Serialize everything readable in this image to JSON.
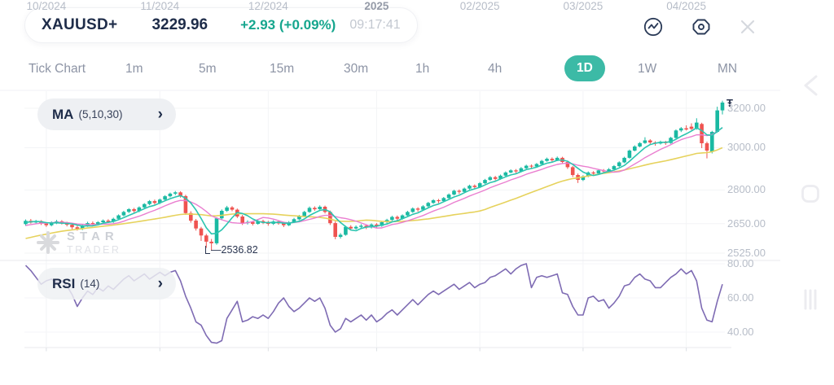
{
  "header": {
    "symbol": "XAUUSD+",
    "price": "3229.96",
    "change": "+2.93 (+0.09%)",
    "time": "09:17:41"
  },
  "toolbar": {
    "timeframes": [
      "Tick Chart",
      "1m",
      "5m",
      "15m",
      "30m",
      "1h",
      "4h",
      "1D",
      "1W",
      "MN"
    ],
    "active": "1D"
  },
  "indicators": {
    "ma_label": "MA",
    "ma_params": "(5,10,30)",
    "rsi_label": "RSI",
    "rsi_params": "(14)"
  },
  "watermark": {
    "line1": "STAR",
    "line2": "TRADER"
  },
  "colors": {
    "up": "#1ab9a2",
    "down": "#ef5350",
    "ma5": "#2cc5b0",
    "ma10": "#ea7fd0",
    "ma30": "#e6d25c",
    "rsi": "#7e6bb3",
    "accent": "#3cbaa6",
    "change": "#16a68e",
    "grid": "#f3f4f6",
    "separator": "#e8eaee"
  },
  "chart_data": {
    "type": "candlestick",
    "title": "XAUUSD+ 1D",
    "price_scale": "log",
    "grid": true,
    "low_marker": {
      "label": "—2536.82",
      "value": 2536.82,
      "candle_index": 36
    },
    "last_price": 3229.96,
    "x_ticks": [
      {
        "index": 4,
        "label": "10/2024"
      },
      {
        "index": 26,
        "label": "11/2024"
      },
      {
        "index": 47,
        "label": "12/2024"
      },
      {
        "index": 68,
        "label": "2025",
        "bold": true
      },
      {
        "index": 88,
        "label": "02/2025"
      },
      {
        "index": 108,
        "label": "03/2025"
      },
      {
        "index": 128,
        "label": "04/2025"
      }
    ],
    "price_ticks": [
      {
        "value": 3200,
        "label": "3200.00"
      },
      {
        "value": 3000,
        "label": "3000.00"
      },
      {
        "value": 2800,
        "label": "2800.00"
      },
      {
        "value": 2650,
        "label": "2650.00"
      },
      {
        "value": 2525,
        "label": "2525.00"
      }
    ],
    "rsi_ticks": [
      {
        "value": 80,
        "label": "80.00"
      },
      {
        "value": 60,
        "label": "60.00"
      },
      {
        "value": 40,
        "label": "40.00"
      }
    ],
    "ma_periods": [
      5,
      10,
      30
    ],
    "candles": [
      [
        2648,
        2668,
        2640,
        2662
      ],
      [
        2662,
        2670,
        2650,
        2655
      ],
      [
        2655,
        2666,
        2648,
        2661
      ],
      [
        2661,
        2665,
        2644,
        2650
      ],
      [
        2650,
        2656,
        2636,
        2643
      ],
      [
        2643,
        2660,
        2638,
        2654
      ],
      [
        2654,
        2666,
        2648,
        2660
      ],
      [
        2660,
        2665,
        2646,
        2652
      ],
      [
        2652,
        2658,
        2638,
        2645
      ],
      [
        2645,
        2650,
        2626,
        2634
      ],
      [
        2634,
        2642,
        2620,
        2627
      ],
      [
        2627,
        2646,
        2622,
        2641
      ],
      [
        2641,
        2658,
        2636,
        2652
      ],
      [
        2652,
        2659,
        2642,
        2648
      ],
      [
        2648,
        2661,
        2643,
        2656
      ],
      [
        2656,
        2668,
        2650,
        2663
      ],
      [
        2663,
        2669,
        2652,
        2658
      ],
      [
        2658,
        2676,
        2653,
        2671
      ],
      [
        2671,
        2690,
        2666,
        2686
      ],
      [
        2686,
        2706,
        2682,
        2701
      ],
      [
        2701,
        2718,
        2696,
        2713
      ],
      [
        2713,
        2719,
        2698,
        2705
      ],
      [
        2705,
        2726,
        2700,
        2721
      ],
      [
        2721,
        2740,
        2716,
        2736
      ],
      [
        2736,
        2754,
        2731,
        2749
      ],
      [
        2749,
        2756,
        2734,
        2741
      ],
      [
        2741,
        2761,
        2736,
        2756
      ],
      [
        2756,
        2776,
        2751,
        2771
      ],
      [
        2771,
        2788,
        2766,
        2783
      ],
      [
        2783,
        2795,
        2776,
        2789
      ],
      [
        2789,
        2794,
        2765,
        2772
      ],
      [
        2772,
        2778,
        2688,
        2696
      ],
      [
        2696,
        2704,
        2654,
        2663
      ],
      [
        2663,
        2670,
        2620,
        2629
      ],
      [
        2629,
        2636,
        2576,
        2599
      ],
      [
        2599,
        2606,
        2547,
        2573
      ],
      [
        2573,
        2584,
        2536.82,
        2566
      ],
      [
        2566,
        2678,
        2560,
        2673
      ],
      [
        2673,
        2712,
        2668,
        2706
      ],
      [
        2706,
        2728,
        2701,
        2721
      ],
      [
        2721,
        2727,
        2704,
        2711
      ],
      [
        2711,
        2716,
        2674,
        2681
      ],
      [
        2681,
        2688,
        2644,
        2652
      ],
      [
        2652,
        2664,
        2646,
        2657
      ],
      [
        2657,
        2662,
        2642,
        2649
      ],
      [
        2649,
        2668,
        2645,
        2661
      ],
      [
        2661,
        2667,
        2648,
        2656
      ],
      [
        2656,
        2662,
        2641,
        2649
      ],
      [
        2649,
        2665,
        2644,
        2659
      ],
      [
        2659,
        2664,
        2645,
        2651
      ],
      [
        2651,
        2658,
        2635,
        2643
      ],
      [
        2643,
        2661,
        2639,
        2656
      ],
      [
        2656,
        2675,
        2652,
        2669
      ],
      [
        2669,
        2688,
        2665,
        2682
      ],
      [
        2682,
        2706,
        2678,
        2701
      ],
      [
        2701,
        2725,
        2697,
        2719
      ],
      [
        2719,
        2726,
        2706,
        2713
      ],
      [
        2713,
        2730,
        2709,
        2724
      ],
      [
        2724,
        2729,
        2694,
        2701
      ],
      [
        2701,
        2707,
        2644,
        2652
      ],
      [
        2652,
        2660,
        2583,
        2593
      ],
      [
        2593,
        2609,
        2586,
        2602
      ],
      [
        2602,
        2641,
        2598,
        2636
      ],
      [
        2636,
        2643,
        2622,
        2629
      ],
      [
        2629,
        2642,
        2624,
        2636
      ],
      [
        2636,
        2648,
        2630,
        2641
      ],
      [
        2641,
        2646,
        2626,
        2633
      ],
      [
        2633,
        2651,
        2629,
        2646
      ],
      [
        2646,
        2652,
        2633,
        2640
      ],
      [
        2640,
        2660,
        2636,
        2656
      ],
      [
        2656,
        2671,
        2651,
        2666
      ],
      [
        2666,
        2684,
        2662,
        2679
      ],
      [
        2679,
        2685,
        2664,
        2671
      ],
      [
        2671,
        2690,
        2667,
        2686
      ],
      [
        2686,
        2706,
        2682,
        2701
      ],
      [
        2701,
        2721,
        2697,
        2716
      ],
      [
        2716,
        2722,
        2702,
        2711
      ],
      [
        2711,
        2731,
        2707,
        2726
      ],
      [
        2726,
        2746,
        2722,
        2741
      ],
      [
        2741,
        2758,
        2737,
        2753
      ],
      [
        2753,
        2759,
        2740,
        2749
      ],
      [
        2749,
        2768,
        2745,
        2763
      ],
      [
        2763,
        2784,
        2759,
        2779
      ],
      [
        2779,
        2801,
        2775,
        2796
      ],
      [
        2796,
        2802,
        2782,
        2791
      ],
      [
        2791,
        2811,
        2787,
        2806
      ],
      [
        2806,
        2824,
        2802,
        2819
      ],
      [
        2819,
        2825,
        2805,
        2813
      ],
      [
        2813,
        2836,
        2809,
        2831
      ],
      [
        2831,
        2851,
        2827,
        2846
      ],
      [
        2846,
        2864,
        2842,
        2859
      ],
      [
        2859,
        2865,
        2844,
        2851
      ],
      [
        2851,
        2871,
        2847,
        2866
      ],
      [
        2866,
        2886,
        2862,
        2881
      ],
      [
        2881,
        2896,
        2877,
        2891
      ],
      [
        2891,
        2897,
        2878,
        2886
      ],
      [
        2886,
        2907,
        2882,
        2901
      ],
      [
        2901,
        2918,
        2897,
        2913
      ],
      [
        2913,
        2919,
        2901,
        2909
      ],
      [
        2909,
        2926,
        2905,
        2921
      ],
      [
        2921,
        2941,
        2917,
        2936
      ],
      [
        2936,
        2952,
        2932,
        2946
      ],
      [
        2946,
        2953,
        2932,
        2939
      ],
      [
        2939,
        2957,
        2935,
        2951
      ],
      [
        2951,
        2956,
        2924,
        2931
      ],
      [
        2931,
        2937,
        2898,
        2906
      ],
      [
        2906,
        2912,
        2860,
        2869
      ],
      [
        2869,
        2876,
        2832,
        2846
      ],
      [
        2846,
        2868,
        2841,
        2863
      ],
      [
        2863,
        2886,
        2859,
        2881
      ],
      [
        2881,
        2887,
        2868,
        2876
      ],
      [
        2876,
        2896,
        2872,
        2891
      ],
      [
        2891,
        2897,
        2878,
        2886
      ],
      [
        2886,
        2902,
        2881,
        2896
      ],
      [
        2896,
        2916,
        2892,
        2911
      ],
      [
        2911,
        2934,
        2907,
        2929
      ],
      [
        2929,
        2956,
        2925,
        2951
      ],
      [
        2951,
        2991,
        2947,
        2986
      ],
      [
        2986,
        3012,
        2982,
        3006
      ],
      [
        3006,
        3028,
        3002,
        3023
      ],
      [
        3023,
        3052,
        3019,
        3036
      ],
      [
        3036,
        3042,
        3018,
        3026
      ],
      [
        3026,
        3032,
        3010,
        3021
      ],
      [
        3021,
        3035,
        3016,
        3029
      ],
      [
        3029,
        3034,
        3014,
        3023
      ],
      [
        3023,
        3054,
        3019,
        3049
      ],
      [
        3049,
        3091,
        3045,
        3086
      ],
      [
        3086,
        3103,
        3078,
        3097
      ],
      [
        3097,
        3112,
        3086,
        3091
      ],
      [
        3105,
        3122,
        3088,
        3094
      ],
      [
        3094,
        3148,
        3090,
        3126
      ],
      [
        3119,
        3125,
        2998,
        3022
      ],
      [
        3022,
        3030,
        2948,
        2986
      ],
      [
        2980,
        3084,
        2972,
        3079
      ],
      [
        3079,
        3208,
        3074,
        3189
      ],
      [
        3189,
        3240,
        3168,
        3229.96
      ]
    ],
    "rsi": [
      79,
      76,
      72,
      68,
      70,
      71,
      69,
      70,
      67,
      62,
      55,
      60,
      64,
      62,
      66,
      64,
      67,
      65,
      68,
      71,
      73,
      70,
      72,
      74,
      71,
      73,
      75,
      73,
      75,
      76,
      70,
      61,
      54,
      46,
      44,
      38,
      34,
      33.5,
      35,
      48,
      53,
      58,
      46,
      47,
      49,
      48,
      50,
      48,
      52,
      57,
      60,
      55,
      52,
      54,
      57,
      60,
      58,
      60,
      54,
      44,
      40,
      42,
      48,
      46,
      48,
      50,
      47,
      50,
      46,
      48,
      51,
      53,
      50,
      53,
      56,
      59,
      56,
      59,
      62,
      64,
      62,
      64,
      66,
      68,
      65,
      67,
      69,
      66,
      68,
      69,
      72,
      73,
      75,
      77,
      74,
      77,
      79,
      80,
      66,
      72,
      73,
      72,
      73,
      74,
      63,
      62,
      55,
      50,
      50,
      60,
      61,
      58,
      59,
      54,
      57,
      61,
      67,
      68,
      72,
      74,
      71,
      70,
      66,
      66,
      69,
      72,
      74,
      77,
      74,
      76,
      70,
      54,
      47,
      46,
      58,
      68
    ]
  }
}
